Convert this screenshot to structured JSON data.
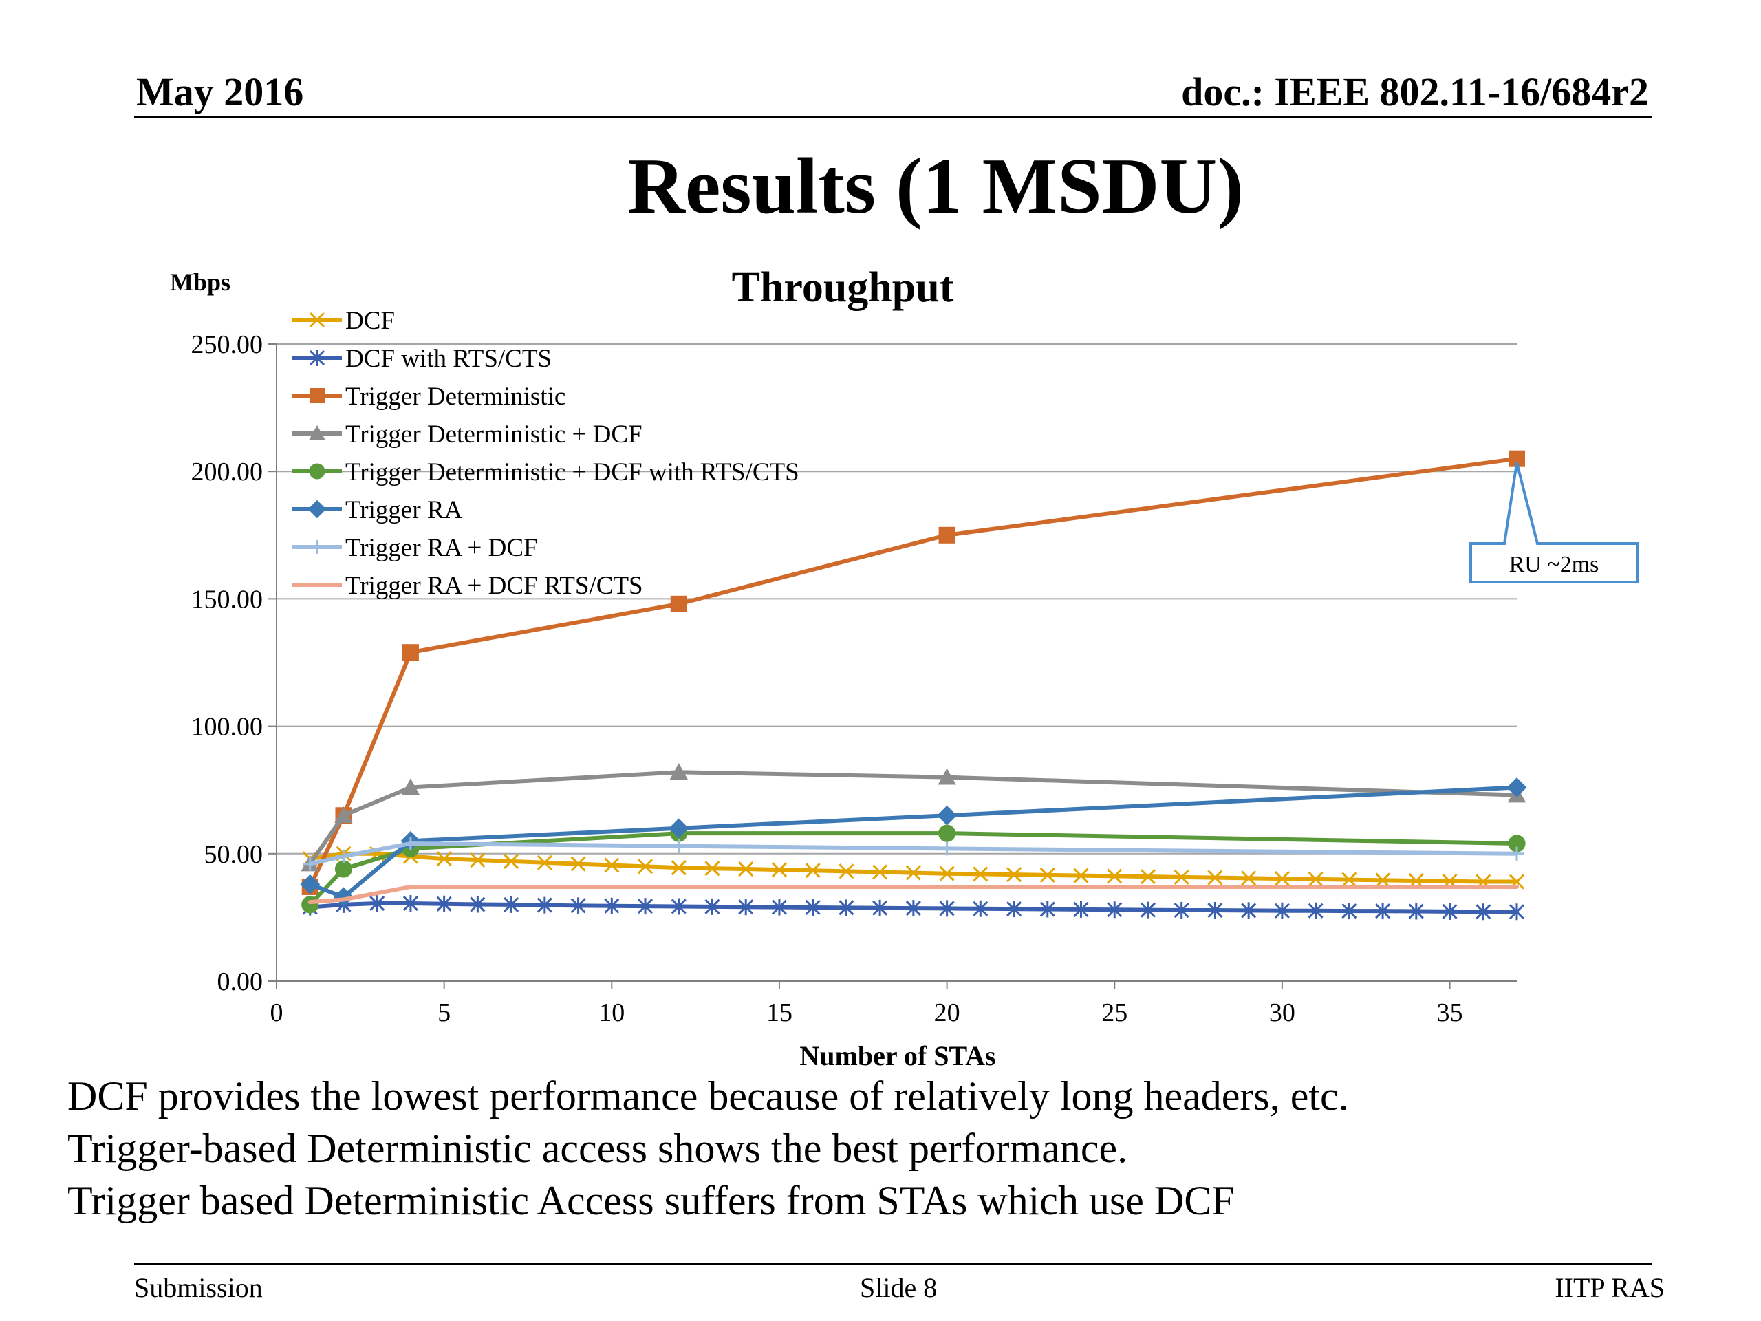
{
  "header": {
    "date": "May 2016",
    "doc": "doc.: IEEE 802.11-16/684r2"
  },
  "title": "Results (1 MSDU)",
  "bullets": [
    "DCF provides the lowest performance because of relatively long headers, etc.",
    "Trigger-based Deterministic access shows the best performance.",
    "Trigger based Deterministic Access suffers from STAs which use DCF"
  ],
  "footer": {
    "left": "Submission",
    "center": "Slide 8",
    "right": "IITP RAS"
  },
  "chart_data": {
    "type": "line",
    "title": "Throughput",
    "ylabel": "Mbps",
    "xlabel": "Number of STAs",
    "xlim": [
      0,
      37
    ],
    "ylim": [
      0,
      250
    ],
    "xticks": [
      0,
      5,
      10,
      15,
      20,
      25,
      30,
      35
    ],
    "yticks": [
      0,
      50,
      100,
      150,
      200,
      250
    ],
    "ytick_labels": [
      "0.00",
      "50.00",
      "100.00",
      "150.00",
      "200.00",
      "250.00"
    ],
    "grid": true,
    "legend_position": "top-left inside plot",
    "series": [
      {
        "name": "DCF",
        "color": "#E3A400",
        "marker": "x",
        "x": [
          1,
          2,
          3,
          4,
          5,
          6,
          7,
          8,
          9,
          10,
          11,
          12,
          13,
          14,
          15,
          16,
          17,
          18,
          19,
          20,
          21,
          22,
          23,
          24,
          25,
          26,
          27,
          28,
          29,
          30,
          31,
          32,
          33,
          34,
          35,
          36,
          37
        ],
        "y": [
          48,
          50,
          50,
          49,
          48,
          47.5,
          47,
          46.5,
          46,
          45.5,
          45,
          44.5,
          44.2,
          44,
          43.7,
          43.4,
          43.1,
          42.8,
          42.5,
          42.2,
          42,
          41.8,
          41.6,
          41.4,
          41.2,
          41,
          40.8,
          40.6,
          40.4,
          40.2,
          40,
          39.8,
          39.6,
          39.4,
          39.2,
          39,
          39
        ]
      },
      {
        "name": "DCF with RTS/CTS",
        "color": "#3A5FAE",
        "marker": "star",
        "x": [
          1,
          2,
          3,
          4,
          5,
          6,
          7,
          8,
          9,
          10,
          11,
          12,
          13,
          14,
          15,
          16,
          17,
          18,
          19,
          20,
          21,
          22,
          23,
          24,
          25,
          26,
          27,
          28,
          29,
          30,
          31,
          32,
          33,
          34,
          35,
          36,
          37
        ],
        "y": [
          29,
          30,
          30.5,
          30.5,
          30.3,
          30.1,
          30,
          29.8,
          29.6,
          29.5,
          29.4,
          29.3,
          29.2,
          29.1,
          29,
          28.9,
          28.8,
          28.7,
          28.6,
          28.5,
          28.4,
          28.3,
          28.2,
          28.1,
          28,
          27.9,
          27.8,
          27.8,
          27.7,
          27.6,
          27.6,
          27.5,
          27.5,
          27.4,
          27.3,
          27.2,
          27.2
        ]
      },
      {
        "name": "Trigger Deterministic",
        "color": "#D06A2B",
        "marker": "square",
        "x": [
          1,
          2,
          4,
          12,
          20,
          37
        ],
        "y": [
          37,
          65,
          129,
          148,
          175,
          205
        ]
      },
      {
        "name": "Trigger Deterministic + DCF",
        "color": "#8C8C8C",
        "marker": "triangle",
        "x": [
          1,
          2,
          4,
          12,
          20,
          37
        ],
        "y": [
          46,
          65,
          76,
          82,
          80,
          73
        ]
      },
      {
        "name": "Trigger Deterministic + DCF with RTS/CTS",
        "color": "#5A9A3A",
        "marker": "circle",
        "x": [
          1,
          2,
          4,
          12,
          20,
          37
        ],
        "y": [
          30,
          44,
          52,
          58,
          58,
          54
        ]
      },
      {
        "name": "Trigger RA",
        "color": "#3B78B4",
        "marker": "diamond",
        "x": [
          1,
          2,
          4,
          12,
          20,
          37
        ],
        "y": [
          38,
          33,
          55,
          60,
          65,
          76
        ]
      },
      {
        "name": "Trigger RA + DCF",
        "color": "#9DBCE0",
        "marker": "plus",
        "x": [
          1,
          2,
          4,
          12,
          20,
          37
        ],
        "y": [
          46,
          49,
          54,
          53,
          52,
          50
        ]
      },
      {
        "name": "Trigger RA + DCF RTS/CTS",
        "color": "#EFA48C",
        "marker": "none",
        "x": [
          1,
          2,
          4,
          12,
          20,
          37
        ],
        "y": [
          31,
          32,
          37,
          37,
          37,
          37
        ]
      }
    ],
    "annotation": {
      "text": "RU ~2ms",
      "x": 37,
      "y": 205,
      "color": "#4A8ED0"
    }
  }
}
